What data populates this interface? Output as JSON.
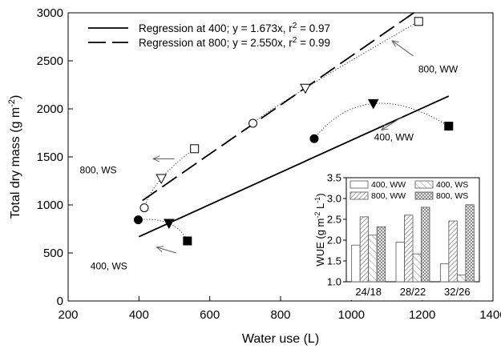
{
  "chart_data": [
    {
      "type": "scatter",
      "xlabel": "Water use (L)",
      "ylabel_main": "Total dry mass (g m",
      "ylabel_sup": "-2",
      "ylabel_end": ")",
      "xlim": [
        200,
        1400
      ],
      "ylim": [
        0,
        3000
      ],
      "xticks": [
        200,
        400,
        600,
        800,
        1000,
        1200,
        1400
      ],
      "yticks": [
        0,
        500,
        1000,
        1500,
        2000,
        2500,
        3000
      ],
      "regressions": [
        {
          "name": "Regression at 400",
          "label_pre": "Regression at 400; y = 1.673x, r",
          "label_sup": "2",
          "label_post": " = 0.97",
          "slope": 1.673,
          "style": "solid",
          "x_range": [
            400,
            1275
          ]
        },
        {
          "name": "Regression at 800",
          "label_pre": "Regression at 800; y = 2.550x, r",
          "label_sup": "2",
          "label_post": " = 0.99",
          "slope": 2.55,
          "style": "dashed",
          "x_range": [
            410,
            1180
          ]
        }
      ],
      "points": [
        {
          "group": "400",
          "marker": "filled-circle",
          "x": 398,
          "y": 845
        },
        {
          "group": "400",
          "marker": "filled-triangle",
          "x": 485,
          "y": 808
        },
        {
          "group": "400",
          "marker": "filled-square",
          "x": 537,
          "y": 625
        },
        {
          "group": "400",
          "marker": "filled-circle",
          "x": 895,
          "y": 1690
        },
        {
          "group": "400",
          "marker": "filled-triangle",
          "x": 1062,
          "y": 2055
        },
        {
          "group": "400",
          "marker": "filled-square",
          "x": 1275,
          "y": 1820
        },
        {
          "group": "800",
          "marker": "open-circle",
          "x": 415,
          "y": 970
        },
        {
          "group": "800",
          "marker": "open-triangle",
          "x": 463,
          "y": 1275
        },
        {
          "group": "800",
          "marker": "open-square",
          "x": 557,
          "y": 1585
        },
        {
          "group": "800",
          "marker": "open-circle",
          "x": 722,
          "y": 1850
        },
        {
          "group": "800",
          "marker": "open-triangle",
          "x": 870,
          "y": 2215
        },
        {
          "group": "800",
          "marker": "open-square",
          "x": 1190,
          "y": 2910
        }
      ],
      "dotted_links": [
        {
          "from": [
            398,
            845
          ],
          "via": [
            485,
            808
          ],
          "to": [
            537,
            625
          ]
        },
        {
          "from": [
            895,
            1690
          ],
          "via": [
            1062,
            2055
          ],
          "to": [
            1275,
            1820
          ]
        },
        {
          "from": [
            415,
            970
          ],
          "via": [
            463,
            1275
          ],
          "to": [
            557,
            1585
          ]
        },
        {
          "from": [
            722,
            1850
          ],
          "via": [
            870,
            2215
          ],
          "to": [
            1190,
            2910
          ]
        }
      ],
      "annotations": [
        {
          "text": "800, WW",
          "x": 1245,
          "y": 2380,
          "arrow_from": [
            1175,
            2550
          ],
          "arrow_to": [
            1115,
            2710
          ]
        },
        {
          "text": "400, WW",
          "x": 1120,
          "y": 1670,
          "arrow_from": [
            1145,
            1920
          ],
          "arrow_to": [
            1085,
            1780
          ]
        },
        {
          "text": "800, WS",
          "x": 285,
          "y": 1330,
          "arrow_from": [
            500,
            1480
          ],
          "arrow_to": [
            440,
            1480
          ]
        },
        {
          "text": "400, WS",
          "x": 315,
          "y": 330,
          "arrow_from": [
            505,
            500
          ],
          "arrow_to": [
            450,
            560
          ]
        }
      ]
    },
    {
      "type": "bar",
      "inset": true,
      "ylabel_main": "WUE (g m",
      "ylabel_sup1": "-2",
      "ylabel_mid": " L",
      "ylabel_sup2": "-1",
      "ylabel_end": ")",
      "ylim": [
        1.0,
        3.5
      ],
      "yticks": [
        "1.0",
        "1.5",
        "2.0",
        "2.5",
        "3.0",
        "3.5"
      ],
      "categories": [
        "24/18",
        "28/22",
        "32/26"
      ],
      "series": [
        {
          "name": "400, WW",
          "pattern": "open",
          "values": [
            1.88,
            1.95,
            1.43
          ]
        },
        {
          "name": "800, WW",
          "pattern": "diag",
          "values": [
            2.56,
            2.6,
            2.46
          ]
        },
        {
          "name": "400, WS",
          "pattern": "diag-sparse",
          "values": [
            2.12,
            1.67,
            1.16
          ]
        },
        {
          "name": "800, WS",
          "pattern": "cross",
          "values": [
            2.32,
            2.79,
            2.85
          ]
        }
      ]
    }
  ]
}
